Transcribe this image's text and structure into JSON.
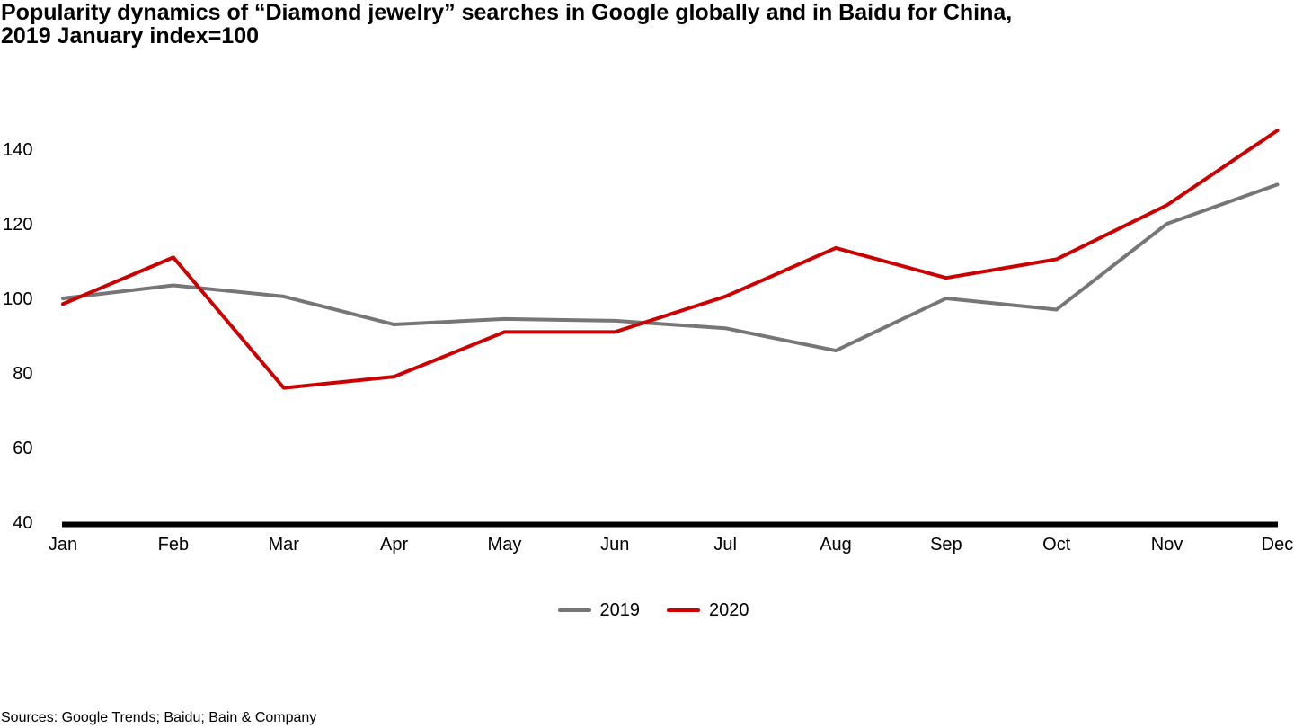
{
  "title": {
    "line1": "Popularity dynamics of “Diamond jewelry” searches in Google globally and in Baidu for China,",
    "line2": "2019 January index=100"
  },
  "source": "Sources: Google Trends; Baidu; Bain & Company",
  "colors": {
    "series_2019": "#767676",
    "series_2020": "#cc0000",
    "axis": "#000000",
    "text": "#000000",
    "background": "#ffffff"
  },
  "chart_data": {
    "type": "line",
    "title": "Popularity dynamics of “Diamond jewelry” searches in Google globally and in Baidu for China, 2019 January index=100",
    "x": [
      "Jan",
      "Feb",
      "Mar",
      "Apr",
      "May",
      "Jun",
      "Jul",
      "Aug",
      "Sep",
      "Oct",
      "Nov",
      "Dec"
    ],
    "series": [
      {
        "name": "2019",
        "color_key": "series_2019",
        "values": [
          100,
          103.5,
          100.5,
          93,
          94.5,
          94,
          92,
          86,
          100,
          97,
          120,
          130.5
        ]
      },
      {
        "name": "2020",
        "color_key": "series_2020",
        "values": [
          98.5,
          111,
          76,
          79,
          91,
          91,
          100.5,
          113.5,
          105.5,
          110.5,
          125,
          145
        ]
      }
    ],
    "yticks": [
      40,
      60,
      80,
      100,
      120,
      140
    ],
    "ylim": [
      40,
      148
    ],
    "xlabel": "",
    "ylabel": "",
    "grid": false,
    "legend_position": "bottom-center"
  }
}
